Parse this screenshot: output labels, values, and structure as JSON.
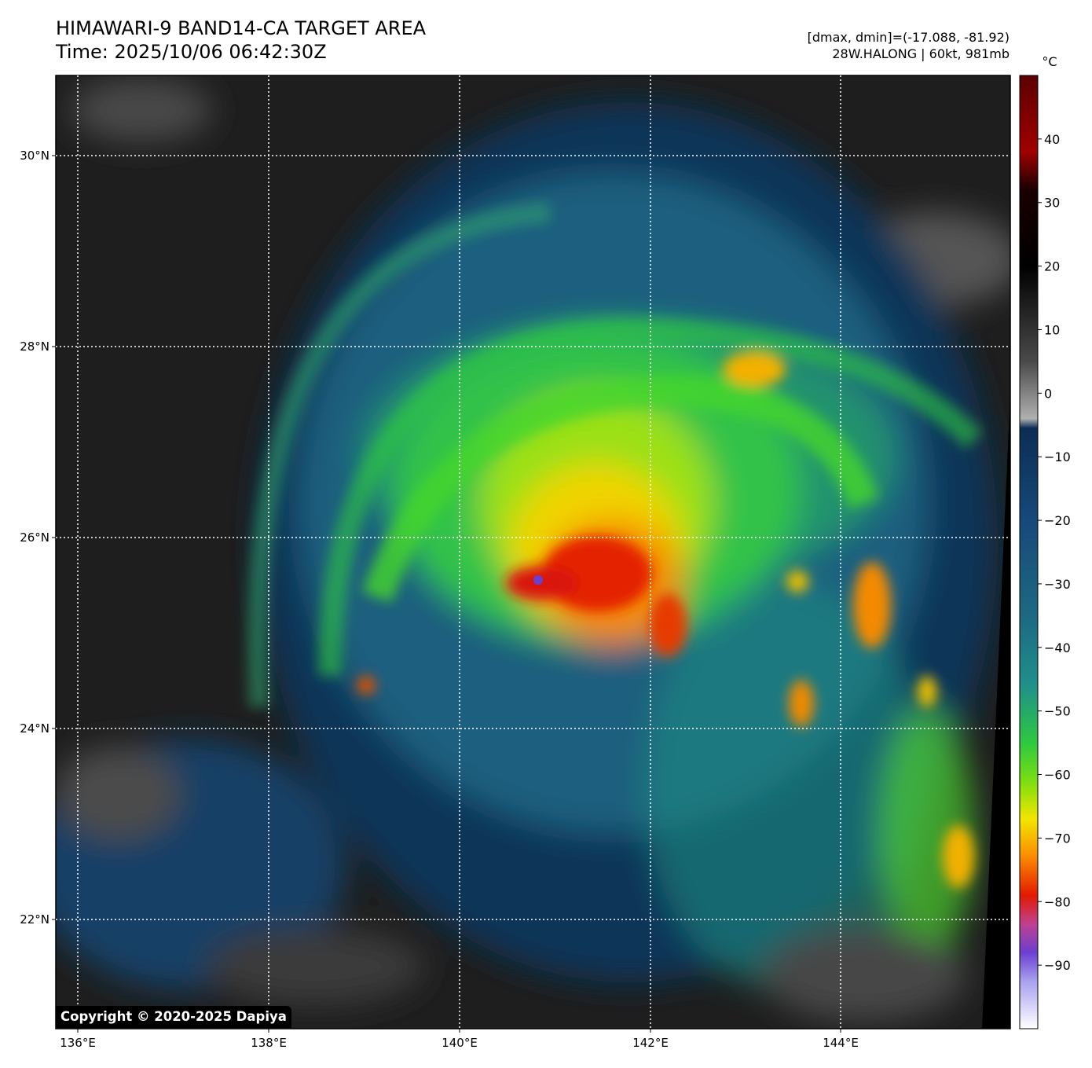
{
  "header": {
    "title_line1": "HIMAWARI-9 BAND14-CA TARGET AREA",
    "title_line2": "Time: 2025/10/06 06:42:30Z",
    "dmax_dmin": "[dmax, dmin]=(-17.088, -81.92)",
    "storm_info": "28W.HALONG | 60kt, 981mb"
  },
  "map": {
    "lon_labels": [
      "136°E",
      "138°E",
      "140°E",
      "142°E",
      "144°E"
    ],
    "lat_labels": [
      "30°N",
      "28°N",
      "26°N",
      "24°N",
      "22°N"
    ],
    "gridlines": "dotted white",
    "storm_center": {
      "lat": 25.55,
      "lon": 140.85
    }
  },
  "colorbar": {
    "unit": "°C",
    "ticks": [
      "40",
      "30",
      "20",
      "10",
      "0",
      "−10",
      "−20",
      "−30",
      "−40",
      "−50",
      "−60",
      "−70",
      "−80",
      "−90"
    ],
    "range": [
      -100,
      50
    ],
    "colors": {
      "warm_end": "#5c0000",
      "black": "#000000",
      "grey": "#9a9a9a",
      "navy": "#0b2d55",
      "teal": "#20868a",
      "green": "#32d21c",
      "yellow": "#f2e600",
      "orange": "#fb8a00",
      "red": "#e21a00",
      "purple": "#6b3fd0",
      "white": "#ffffff"
    }
  },
  "copyright": "Copyright © 2020-2025 Dapiya"
}
